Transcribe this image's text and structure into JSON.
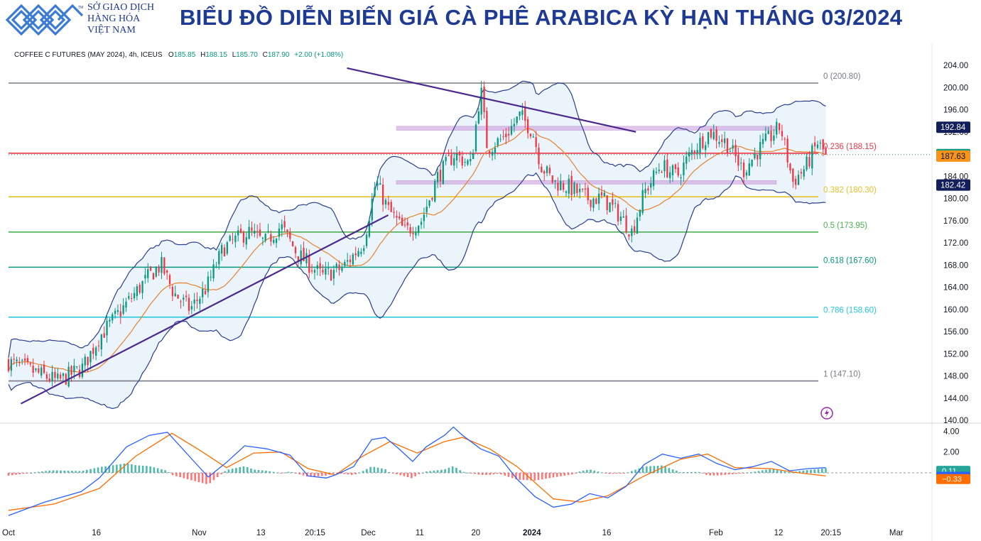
{
  "header": {
    "title": "BIỂU ĐỒ DIỄN BIẾN GIÁ CÀ PHÊ ARABICA KỲ HẠN THÁNG 03/2024",
    "logo_lines": [
      "SỞ GIAO DỊCH",
      "HÀNG HÓA",
      "VIỆT NAM"
    ],
    "logo_tm": "TM"
  },
  "legend": {
    "symbol": "COFFEE C FUTURES (MAY 2024), 4h, ICEUS",
    "o_label": "O",
    "o": "185.85",
    "h_label": "H",
    "h": "188.15",
    "l_label": "L",
    "l": "185.70",
    "c_label": "C",
    "c": "187.90",
    "change": "+2.00 (+1.08%)"
  },
  "colors": {
    "up": "#089981",
    "down": "#f23645",
    "bollinger": "#2a3f8f",
    "bollinger_fill": "#e6f0fa",
    "sma": "#e8822e",
    "trendline": "#4b2a8c",
    "zone": "#cc99dd",
    "macd": "#2962ff",
    "signal": "#ff6d00",
    "accent_title": "#1f3a93"
  },
  "chart_data": [
    {
      "type": "candlestick",
      "x_labels": [
        "Oct",
        "16",
        "Nov",
        "13",
        "20:15",
        "Dec",
        "11",
        "20",
        "2024",
        "16",
        "Feb",
        "12",
        "20:15",
        "Mar"
      ],
      "ylim": [
        140,
        204
      ],
      "y_ticks": [
        "204.00",
        "200.00",
        "196.00",
        "192.00",
        "188.00",
        "184.00",
        "180.00",
        "176.00",
        "172.00",
        "168.00",
        "164.00",
        "160.00",
        "156.00",
        "152.00",
        "148.00",
        "144.00",
        "140.00"
      ],
      "price_path": [
        [
          0,
          150.5
        ],
        [
          0.03,
          148.8
        ],
        [
          0.06,
          147.0
        ],
        [
          0.09,
          149.5
        ],
        [
          0.11,
          155.0
        ],
        [
          0.14,
          160.5
        ],
        [
          0.17,
          166.0
        ],
        [
          0.185,
          168.0
        ],
        [
          0.2,
          163.0
        ],
        [
          0.22,
          160.0
        ],
        [
          0.24,
          164.0
        ],
        [
          0.26,
          171.0
        ],
        [
          0.29,
          174.0
        ],
        [
          0.31,
          172.0
        ],
        [
          0.33,
          175.0
        ],
        [
          0.35,
          170.0
        ],
        [
          0.38,
          166.0
        ],
        [
          0.405,
          167.5
        ],
        [
          0.43,
          172.0
        ],
        [
          0.445,
          183.0
        ],
        [
          0.46,
          178.0
        ],
        [
          0.48,
          174.0
        ],
        [
          0.5,
          176.0
        ],
        [
          0.52,
          184.0
        ],
        [
          0.54,
          188.0
        ],
        [
          0.56,
          186.0
        ],
        [
          0.572,
          200.0
        ],
        [
          0.58,
          189.0
        ],
        [
          0.6,
          191.0
        ],
        [
          0.62,
          195.0
        ],
        [
          0.635,
          192.0
        ],
        [
          0.645,
          186.0
        ],
        [
          0.66,
          183.0
        ],
        [
          0.68,
          182.0
        ],
        [
          0.7,
          180.0
        ],
        [
          0.72,
          180.0
        ],
        [
          0.74,
          177.0
        ],
        [
          0.755,
          174.0
        ],
        [
          0.77,
          181.0
        ],
        [
          0.79,
          186.0
        ],
        [
          0.81,
          184.0
        ],
        [
          0.83,
          189.0
        ],
        [
          0.85,
          192.0
        ],
        [
          0.87,
          190.0
        ],
        [
          0.89,
          185.0
        ],
        [
          0.91,
          189.0
        ],
        [
          0.935,
          193.0
        ],
        [
          0.95,
          183.0
        ],
        [
          0.965,
          185.5
        ],
        [
          0.98,
          190.0
        ],
        [
          0.99,
          187.9
        ]
      ],
      "fibonacci": [
        {
          "label": "0 (200.80)",
          "value": 200.8,
          "color": "#787b86"
        },
        {
          "label": "0.236 (188.15)",
          "value": 188.15,
          "color": "#f23645"
        },
        {
          "label": "0.382 (180.30)",
          "value": 180.3,
          "color": "#e6c229"
        },
        {
          "label": "0.5 (173.95)",
          "value": 173.95,
          "color": "#4caf50"
        },
        {
          "label": "0.618 (167.60)",
          "value": 167.6,
          "color": "#089981"
        },
        {
          "label": "0.786 (158.60)",
          "value": 158.6,
          "color": "#26c6da"
        },
        {
          "label": "1 (147.10)",
          "value": 147.1,
          "color": "#787b86"
        }
      ],
      "resistance_zone": [
        192.3,
        193.0
      ],
      "support_zone": [
        182.6,
        183.2
      ],
      "trendlines": [
        {
          "from": [
            0.015,
            143.0
          ],
          "to": [
            0.46,
            177.0
          ]
        },
        {
          "from": [
            0.41,
            203.5
          ],
          "to": [
            0.76,
            192.0
          ]
        }
      ],
      "price_tags": [
        {
          "value": 192.84,
          "text": "192.84",
          "bg": "#131f5a",
          "fg": "#ffffff"
        },
        {
          "value": 187.9,
          "text": "187.90",
          "bg": "#089981",
          "fg": "#ffffff"
        },
        {
          "value": 187.63,
          "text": "187.63",
          "bg": "#f7931a",
          "fg": "#131722"
        },
        {
          "value": 182.42,
          "text": "182.42",
          "bg": "#131f5a",
          "fg": "#ffffff"
        }
      ]
    },
    {
      "type": "macd",
      "ylim": [
        -4.5,
        4.5
      ],
      "y_ticks": [
        "4.00",
        "2.00"
      ],
      "macd": [
        [
          0,
          -4.1
        ],
        [
          0.04,
          -2.8
        ],
        [
          0.08,
          -1.8
        ],
        [
          0.1,
          -0.5
        ],
        [
          0.13,
          2.5
        ],
        [
          0.155,
          3.6
        ],
        [
          0.175,
          3.9
        ],
        [
          0.2,
          1.5
        ],
        [
          0.22,
          -0.4
        ],
        [
          0.24,
          1.0
        ],
        [
          0.26,
          2.6
        ],
        [
          0.285,
          2.3
        ],
        [
          0.31,
          1.7
        ],
        [
          0.33,
          -0.3
        ],
        [
          0.35,
          -0.5
        ],
        [
          0.36,
          -0.2
        ],
        [
          0.38,
          0.6
        ],
        [
          0.4,
          3.2
        ],
        [
          0.415,
          3.4
        ],
        [
          0.43,
          2.3
        ],
        [
          0.445,
          1.1
        ],
        [
          0.46,
          2.5
        ],
        [
          0.48,
          3.6
        ],
        [
          0.49,
          4.4
        ],
        [
          0.5,
          3.6
        ],
        [
          0.52,
          2.3
        ],
        [
          0.54,
          1.6
        ],
        [
          0.56,
          -0.6
        ],
        [
          0.58,
          -2.3
        ],
        [
          0.6,
          -3.3
        ],
        [
          0.62,
          -3.0
        ],
        [
          0.64,
          -2.0
        ],
        [
          0.66,
          -2.4
        ],
        [
          0.68,
          -1.3
        ],
        [
          0.7,
          0.8
        ],
        [
          0.72,
          1.8
        ],
        [
          0.74,
          1.4
        ],
        [
          0.76,
          1.8
        ],
        [
          0.78,
          0.9
        ],
        [
          0.8,
          0.3
        ],
        [
          0.82,
          0.6
        ],
        [
          0.84,
          1.1
        ],
        [
          0.86,
          0.2
        ],
        [
          0.88,
          0.4
        ],
        [
          0.9,
          0.5
        ]
      ],
      "signal": [
        [
          0,
          -3.6
        ],
        [
          0.05,
          -3.0
        ],
        [
          0.1,
          -1.5
        ],
        [
          0.14,
          1.6
        ],
        [
          0.18,
          3.8
        ],
        [
          0.21,
          2.2
        ],
        [
          0.24,
          0.5
        ],
        [
          0.27,
          1.9
        ],
        [
          0.3,
          2.0
        ],
        [
          0.33,
          0.4
        ],
        [
          0.36,
          -0.2
        ],
        [
          0.39,
          1.6
        ],
        [
          0.42,
          3.0
        ],
        [
          0.45,
          1.9
        ],
        [
          0.48,
          3.0
        ],
        [
          0.5,
          3.4
        ],
        [
          0.53,
          2.3
        ],
        [
          0.56,
          0.6
        ],
        [
          0.6,
          -2.5
        ],
        [
          0.63,
          -2.8
        ],
        [
          0.66,
          -2.2
        ],
        [
          0.7,
          -0.3
        ],
        [
          0.74,
          1.3
        ],
        [
          0.77,
          1.8
        ],
        [
          0.8,
          0.5
        ],
        [
          0.84,
          0.4
        ],
        [
          0.87,
          0.0
        ],
        [
          0.9,
          -0.3
        ]
      ],
      "price_tags": [
        {
          "value": 0.11,
          "text": "0.11",
          "bg": "#26a69a",
          "fg": "#ffffff"
        },
        {
          "value": -0.21,
          "text": "−0.21",
          "bg": "#2962ff",
          "fg": "#ffffff"
        },
        {
          "value": -0.33,
          "text": "−0.33",
          "bg": "#ff6d00",
          "fg": "#ffffff"
        }
      ]
    }
  ]
}
